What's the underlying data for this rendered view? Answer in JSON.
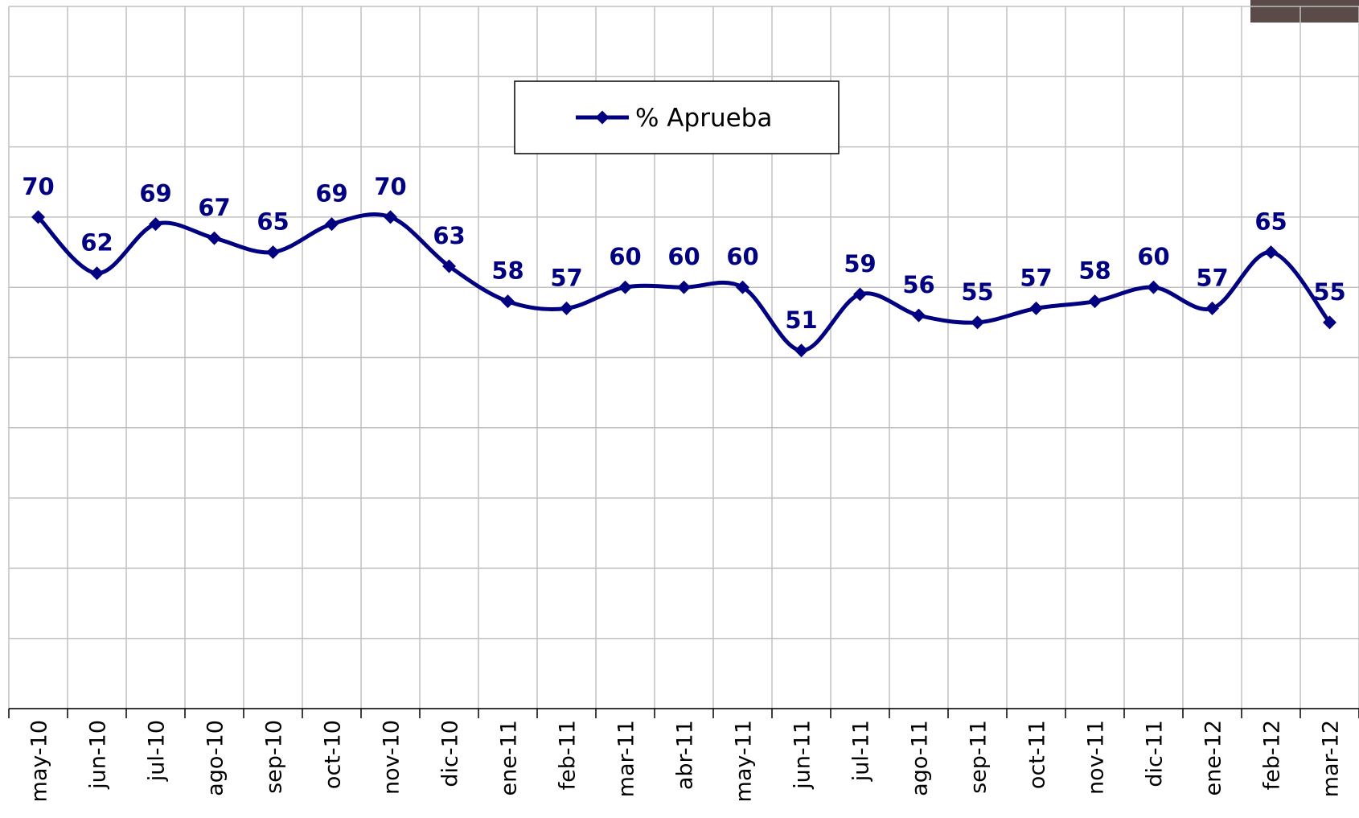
{
  "chart_data": {
    "type": "line",
    "categories": [
      "may-10",
      "jun-10",
      "jul-10",
      "ago-10",
      "sep-10",
      "oct-10",
      "nov-10",
      "dic-10",
      "ene-11",
      "feb-11",
      "mar-11",
      "abr-11",
      "may-11",
      "jun-11",
      "jul-11",
      "ago-11",
      "sep-11",
      "oct-11",
      "nov-11",
      "dic-11",
      "ene-12",
      "feb-12",
      "mar-12"
    ],
    "series": [
      {
        "name": "% Aprueba",
        "color": "#000080",
        "values": [
          70,
          62,
          69,
          67,
          65,
          69,
          70,
          63,
          58,
          57,
          60,
          60,
          60,
          51,
          59,
          56,
          55,
          57,
          58,
          60,
          57,
          65,
          55
        ]
      }
    ],
    "ylim": [
      0,
      100
    ],
    "yticks": [
      0,
      10,
      20,
      30,
      40,
      50,
      60,
      70,
      80,
      90,
      100
    ],
    "grid": true
  }
}
